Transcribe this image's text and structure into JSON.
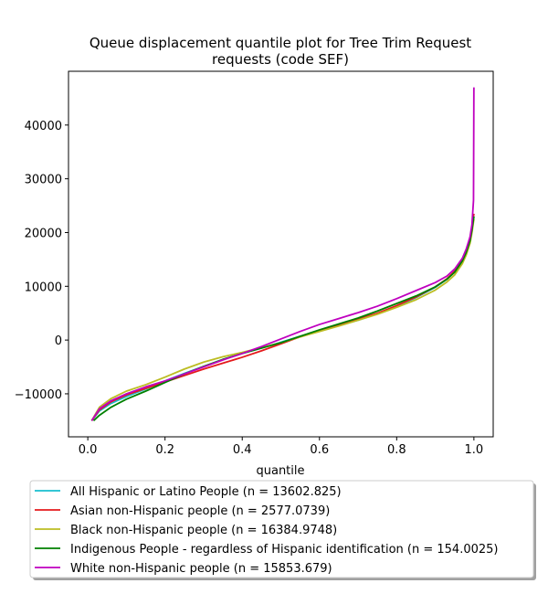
{
  "chart_data": {
    "type": "line",
    "title": "Queue displacement quantile plot for Tree Trim Request\nrequests (code SEF)",
    "xlabel": "quantile",
    "ylabel": "",
    "xlim": [
      -0.05,
      1.05
    ],
    "ylim": [
      -18000,
      50000
    ],
    "x_ticks": [
      0.0,
      0.2,
      0.4,
      0.6,
      0.8,
      1.0
    ],
    "x_tick_labels": [
      "0.0",
      "0.2",
      "0.4",
      "0.6",
      "0.8",
      "1.0"
    ],
    "y_ticks": [
      -10000,
      0,
      10000,
      20000,
      30000,
      40000
    ],
    "y_tick_labels": [
      "−10000",
      "0",
      "10000",
      "20000",
      "30000",
      "40000"
    ],
    "grid": false,
    "legend_position": "below",
    "series": [
      {
        "name": "All Hispanic or Latino People (n = 13602.825)",
        "color": "#17becf",
        "x": [
          0.01,
          0.03,
          0.06,
          0.1,
          0.15,
          0.2,
          0.25,
          0.3,
          0.35,
          0.4,
          0.45,
          0.5,
          0.55,
          0.6,
          0.65,
          0.7,
          0.75,
          0.8,
          0.85,
          0.9,
          0.93,
          0.95,
          0.97,
          0.98,
          0.99,
          0.995,
          1.0
        ],
        "y": [
          -15000,
          -13200,
          -11800,
          -10500,
          -9100,
          -7600,
          -6200,
          -4900,
          -3600,
          -2500,
          -1500,
          -400,
          700,
          1700,
          2700,
          3700,
          4900,
          6300,
          7900,
          9800,
          11300,
          12700,
          14700,
          16300,
          18500,
          20500,
          23000
        ]
      },
      {
        "name": "Asian non-Hispanic people (n = 2577.0739)",
        "color": "#e41a1c",
        "x": [
          0.01,
          0.03,
          0.06,
          0.1,
          0.15,
          0.2,
          0.25,
          0.3,
          0.35,
          0.4,
          0.45,
          0.5,
          0.55,
          0.6,
          0.65,
          0.7,
          0.75,
          0.8,
          0.85,
          0.9,
          0.93,
          0.95,
          0.97,
          0.98,
          0.99,
          0.995,
          1.0
        ],
        "y": [
          -15000,
          -13000,
          -11500,
          -10200,
          -9000,
          -7800,
          -6600,
          -5400,
          -4300,
          -3200,
          -2000,
          -700,
          600,
          1700,
          2800,
          3900,
          5000,
          6400,
          8000,
          9900,
          11400,
          12800,
          15000,
          16700,
          19000,
          21000,
          23500
        ]
      },
      {
        "name": "Black non-Hispanic people (n = 16384.9748)",
        "color": "#bcbd22",
        "x": [
          0.01,
          0.03,
          0.06,
          0.1,
          0.15,
          0.2,
          0.25,
          0.3,
          0.35,
          0.4,
          0.45,
          0.5,
          0.55,
          0.6,
          0.65,
          0.7,
          0.75,
          0.8,
          0.85,
          0.9,
          0.93,
          0.95,
          0.97,
          0.98,
          0.99,
          0.995,
          1.0
        ],
        "y": [
          -15000,
          -12500,
          -10900,
          -9500,
          -8300,
          -6900,
          -5400,
          -4100,
          -3100,
          -2300,
          -1400,
          -500,
          600,
          1600,
          2600,
          3700,
          4800,
          6100,
          7500,
          9300,
          10800,
          12100,
          14200,
          15800,
          18000,
          20000,
          22500
        ]
      },
      {
        "name": "Indigenous People - regardless of Hispanic identification (n = 154.0025)",
        "color": "#008000",
        "x": [
          0.015,
          0.03,
          0.06,
          0.1,
          0.15,
          0.2,
          0.25,
          0.3,
          0.35,
          0.4,
          0.45,
          0.5,
          0.55,
          0.6,
          0.65,
          0.7,
          0.75,
          0.8,
          0.85,
          0.9,
          0.93,
          0.95,
          0.97,
          0.98,
          0.99,
          0.995,
          1.0
        ],
        "y": [
          -15000,
          -14000,
          -12500,
          -11000,
          -9500,
          -7900,
          -6300,
          -4900,
          -3600,
          -2500,
          -1500,
          -500,
          700,
          1900,
          3000,
          4100,
          5400,
          6800,
          8200,
          9900,
          11300,
          12600,
          14700,
          16300,
          18500,
          20500,
          23000
        ]
      },
      {
        "name": "White non-Hispanic people (n = 15853.679)",
        "color": "#bf00bf",
        "x": [
          0.01,
          0.03,
          0.06,
          0.1,
          0.15,
          0.2,
          0.25,
          0.3,
          0.35,
          0.4,
          0.45,
          0.5,
          0.55,
          0.6,
          0.65,
          0.7,
          0.75,
          0.8,
          0.85,
          0.9,
          0.93,
          0.95,
          0.97,
          0.98,
          0.99,
          0.995,
          0.999,
          1.0
        ],
        "y": [
          -15000,
          -12800,
          -11300,
          -10000,
          -8700,
          -7600,
          -6300,
          -5000,
          -3700,
          -2500,
          -1200,
          200,
          1600,
          2900,
          4000,
          5100,
          6300,
          7700,
          9200,
          10700,
          11900,
          13200,
          15200,
          16900,
          19200,
          21500,
          26000,
          47000
        ]
      }
    ]
  }
}
